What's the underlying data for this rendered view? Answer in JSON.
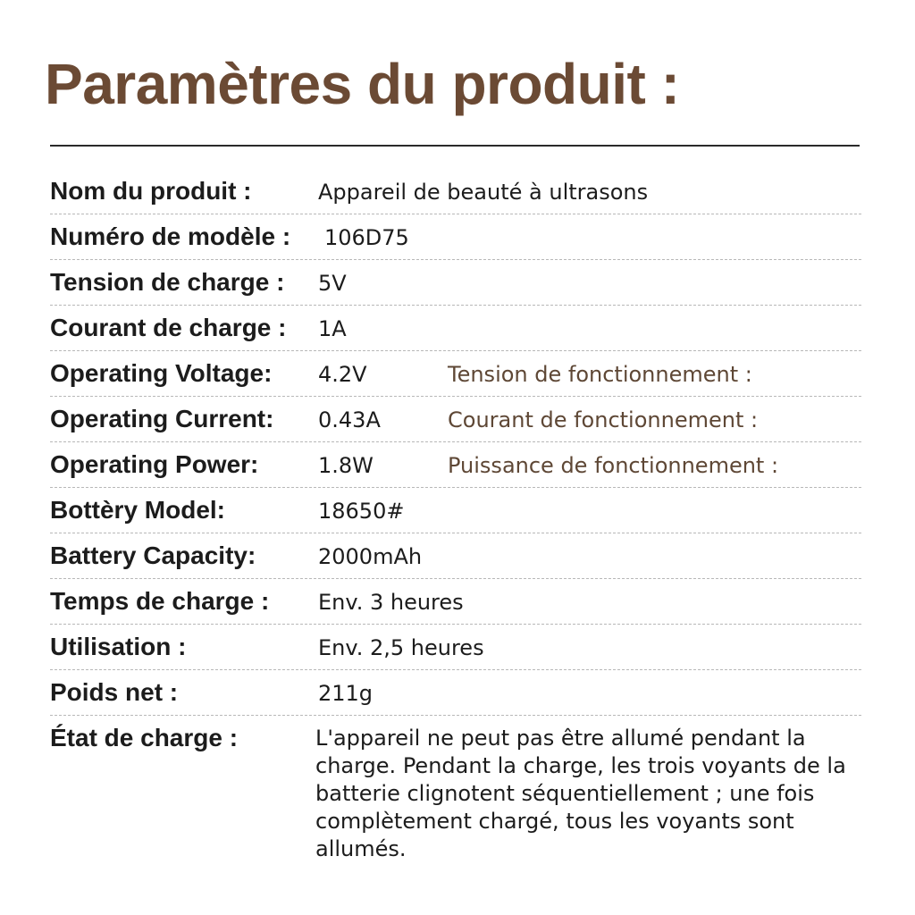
{
  "title": "Paramètres du produit :",
  "specs": [
    {
      "label": "Nom du produit :",
      "value": "Appareil de beauté à ultrasons"
    },
    {
      "label": "Numéro de modèle :",
      "value": "106D75"
    },
    {
      "label": "Tension de charge :",
      "value": "5V"
    },
    {
      "label": "Courant de charge :",
      "value": "1A"
    },
    {
      "label": "Operating Voltage:",
      "value": "4.2V",
      "alt_label": "Tension de fonctionnement :"
    },
    {
      "label": "Operating Current:",
      "value": "0.43A",
      "alt_label": "Courant de fonctionnement :"
    },
    {
      "label": "Operating Power:",
      "value": "1.8W",
      "alt_label": "Puissance de fonctionnement :"
    },
    {
      "label": "Bottèry Model:",
      "value": "18650#"
    },
    {
      "label": "Battery Capacity:",
      "value": "2000mAh"
    },
    {
      "label": "Temps de charge :",
      "value": "Env. 3 heures"
    },
    {
      "label": "Utilisation :",
      "value": "Env. 2,5 heures"
    },
    {
      "label": "Poids net :",
      "value": "211g"
    },
    {
      "label": "État de charge :",
      "value": "L'appareil ne peut pas être allumé pendant la charge. Pendant la charge, les trois voyants de la batterie clignotent séquentiellement ; une fois complètement chargé, tous les voyants sont allumés."
    }
  ]
}
